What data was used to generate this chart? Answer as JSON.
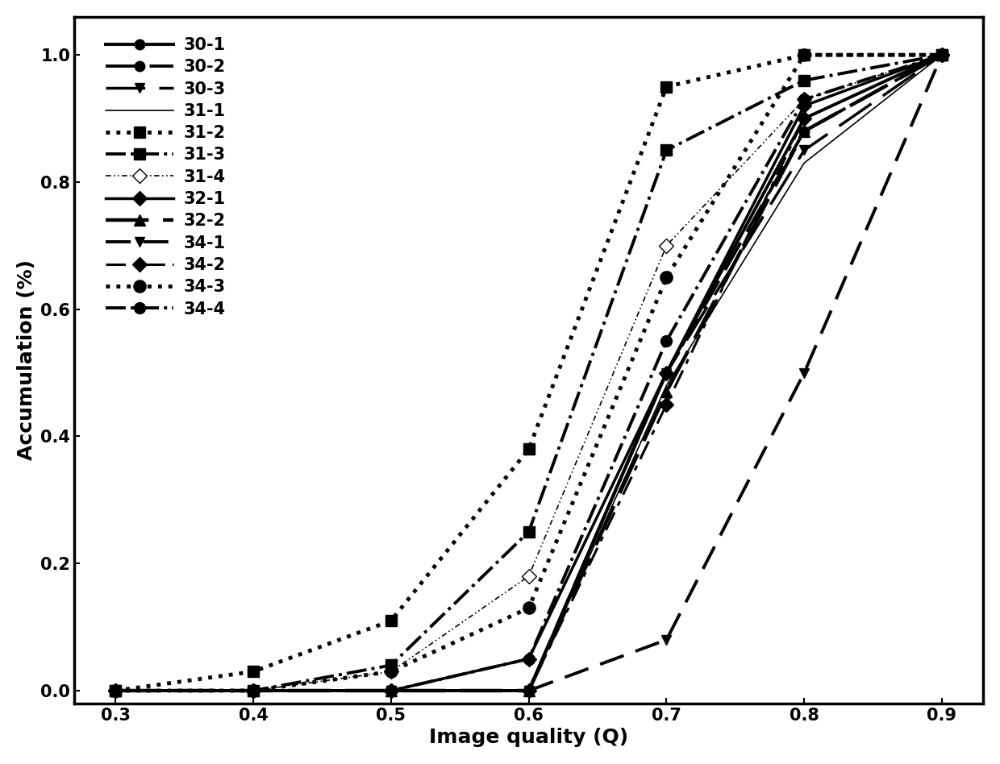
{
  "xlabel": "Image quality (Q)",
  "ylabel": "Accumulation (%)",
  "xlim": [
    0.27,
    0.93
  ],
  "ylim": [
    -0.02,
    1.06
  ],
  "xticks": [
    0.3,
    0.4,
    0.5,
    0.6,
    0.7,
    0.8,
    0.9
  ],
  "yticks": [
    0.0,
    0.2,
    0.4,
    0.6,
    0.8,
    1.0
  ],
  "series": [
    {
      "label": "30-1",
      "x": [
        0.3,
        0.4,
        0.5,
        0.6,
        0.7,
        0.8,
        0.9
      ],
      "y": [
        0.0,
        0.0,
        0.0,
        0.0,
        0.5,
        0.9,
        1.0
      ],
      "linestyle": "-",
      "linewidth": 2.8,
      "marker": "o",
      "markersize": 9,
      "markerfacecolor": "black",
      "markeredgecolor": "black",
      "color": "black"
    },
    {
      "label": "30-2",
      "x": [
        0.3,
        0.4,
        0.5,
        0.6,
        0.7,
        0.8,
        0.9
      ],
      "y": [
        0.0,
        0.0,
        0.0,
        0.0,
        0.5,
        0.88,
        1.0
      ],
      "linestyle": "--",
      "linewidth": 2.8,
      "marker": "o",
      "markersize": 9,
      "markerfacecolor": "black",
      "markeredgecolor": "black",
      "color": "black",
      "dashes": [
        10,
        4
      ]
    },
    {
      "label": "30-3",
      "x": [
        0.3,
        0.4,
        0.5,
        0.6,
        0.7,
        0.8,
        0.9
      ],
      "y": [
        0.0,
        0.0,
        0.0,
        0.0,
        0.5,
        0.85,
        1.0
      ],
      "linestyle": "--",
      "linewidth": 2.5,
      "marker": "v",
      "markersize": 9,
      "markerfacecolor": "black",
      "markeredgecolor": "black",
      "color": "black",
      "dashes": [
        14,
        5
      ]
    },
    {
      "label": "31-1",
      "x": [
        0.3,
        0.4,
        0.5,
        0.6,
        0.7,
        0.8,
        0.9
      ],
      "y": [
        0.0,
        0.0,
        0.0,
        0.0,
        0.48,
        0.83,
        1.0
      ],
      "linestyle": "-",
      "linewidth": 1.2,
      "marker": "None",
      "markersize": 0,
      "markerfacecolor": "black",
      "markeredgecolor": "black",
      "color": "black"
    },
    {
      "label": "31-2",
      "x": [
        0.3,
        0.4,
        0.5,
        0.6,
        0.7,
        0.8,
        0.9
      ],
      "y": [
        0.0,
        0.03,
        0.11,
        0.38,
        0.95,
        1.0,
        1.0
      ],
      "linestyle": ":",
      "linewidth": 3.5,
      "marker": "s",
      "markersize": 10,
      "markerfacecolor": "black",
      "markeredgecolor": "black",
      "color": "black"
    },
    {
      "label": "31-3",
      "x": [
        0.3,
        0.4,
        0.5,
        0.6,
        0.7,
        0.8,
        0.9
      ],
      "y": [
        0.0,
        0.0,
        0.04,
        0.25,
        0.85,
        0.96,
        1.0
      ],
      "linestyle": "-.",
      "linewidth": 2.8,
      "marker": "s",
      "markersize": 10,
      "markerfacecolor": "black",
      "markeredgecolor": "black",
      "color": "black"
    },
    {
      "label": "31-4",
      "x": [
        0.3,
        0.4,
        0.5,
        0.6,
        0.7,
        0.8,
        0.9
      ],
      "y": [
        0.0,
        0.0,
        0.03,
        0.18,
        0.7,
        0.93,
        1.0
      ],
      "linestyle": "-.",
      "linewidth": 1.2,
      "marker": "D",
      "markersize": 9,
      "markerfacecolor": "white",
      "markeredgecolor": "black",
      "color": "black",
      "dashes": [
        4,
        2,
        1,
        2,
        1,
        2
      ]
    },
    {
      "label": "32-1",
      "x": [
        0.3,
        0.4,
        0.5,
        0.6,
        0.7,
        0.8,
        0.9
      ],
      "y": [
        0.0,
        0.0,
        0.0,
        0.05,
        0.5,
        0.92,
        1.0
      ],
      "linestyle": "-",
      "linewidth": 2.5,
      "marker": "D",
      "markersize": 9,
      "markerfacecolor": "black",
      "markeredgecolor": "black",
      "color": "black"
    },
    {
      "label": "32-2",
      "x": [
        0.3,
        0.4,
        0.5,
        0.6,
        0.7,
        0.8,
        0.9
      ],
      "y": [
        0.0,
        0.0,
        0.0,
        0.0,
        0.47,
        0.88,
        1.0
      ],
      "linestyle": "--",
      "linewidth": 3.2,
      "marker": "^",
      "markersize": 10,
      "markerfacecolor": "black",
      "markeredgecolor": "black",
      "color": "black",
      "dashes": [
        12,
        4
      ]
    },
    {
      "label": "34-1",
      "x": [
        0.3,
        0.4,
        0.5,
        0.6,
        0.7,
        0.8,
        0.9
      ],
      "y": [
        0.0,
        0.0,
        0.0,
        0.0,
        0.08,
        0.5,
        1.0
      ],
      "linestyle": "--",
      "linewidth": 2.8,
      "marker": "v",
      "markersize": 9,
      "markerfacecolor": "black",
      "markeredgecolor": "black",
      "color": "black",
      "dashes": [
        8,
        4
      ]
    },
    {
      "label": "34-2",
      "x": [
        0.3,
        0.4,
        0.5,
        0.6,
        0.7,
        0.8,
        0.9
      ],
      "y": [
        0.0,
        0.0,
        0.0,
        0.0,
        0.45,
        0.9,
        1.0
      ],
      "linestyle": "--",
      "linewidth": 2.2,
      "marker": "D",
      "markersize": 9,
      "markerfacecolor": "black",
      "markeredgecolor": "black",
      "color": "black",
      "dashes": [
        8,
        3,
        2,
        3
      ]
    },
    {
      "label": "34-3",
      "x": [
        0.3,
        0.4,
        0.5,
        0.6,
        0.7,
        0.8,
        0.9
      ],
      "y": [
        0.0,
        0.0,
        0.03,
        0.13,
        0.65,
        1.0,
        1.0
      ],
      "linestyle": ":",
      "linewidth": 3.5,
      "marker": "o",
      "markersize": 11,
      "markerfacecolor": "black",
      "markeredgecolor": "black",
      "color": "black"
    },
    {
      "label": "34-4",
      "x": [
        0.3,
        0.4,
        0.5,
        0.6,
        0.7,
        0.8,
        0.9
      ],
      "y": [
        0.0,
        0.0,
        0.0,
        0.05,
        0.55,
        0.93,
        1.0
      ],
      "linestyle": "-.",
      "linewidth": 2.8,
      "marker": "o",
      "markersize": 10,
      "markerfacecolor": "black",
      "markeredgecolor": "black",
      "color": "black"
    }
  ],
  "legend_fontsize": 15,
  "axis_fontsize": 18,
  "tick_fontsize": 15
}
